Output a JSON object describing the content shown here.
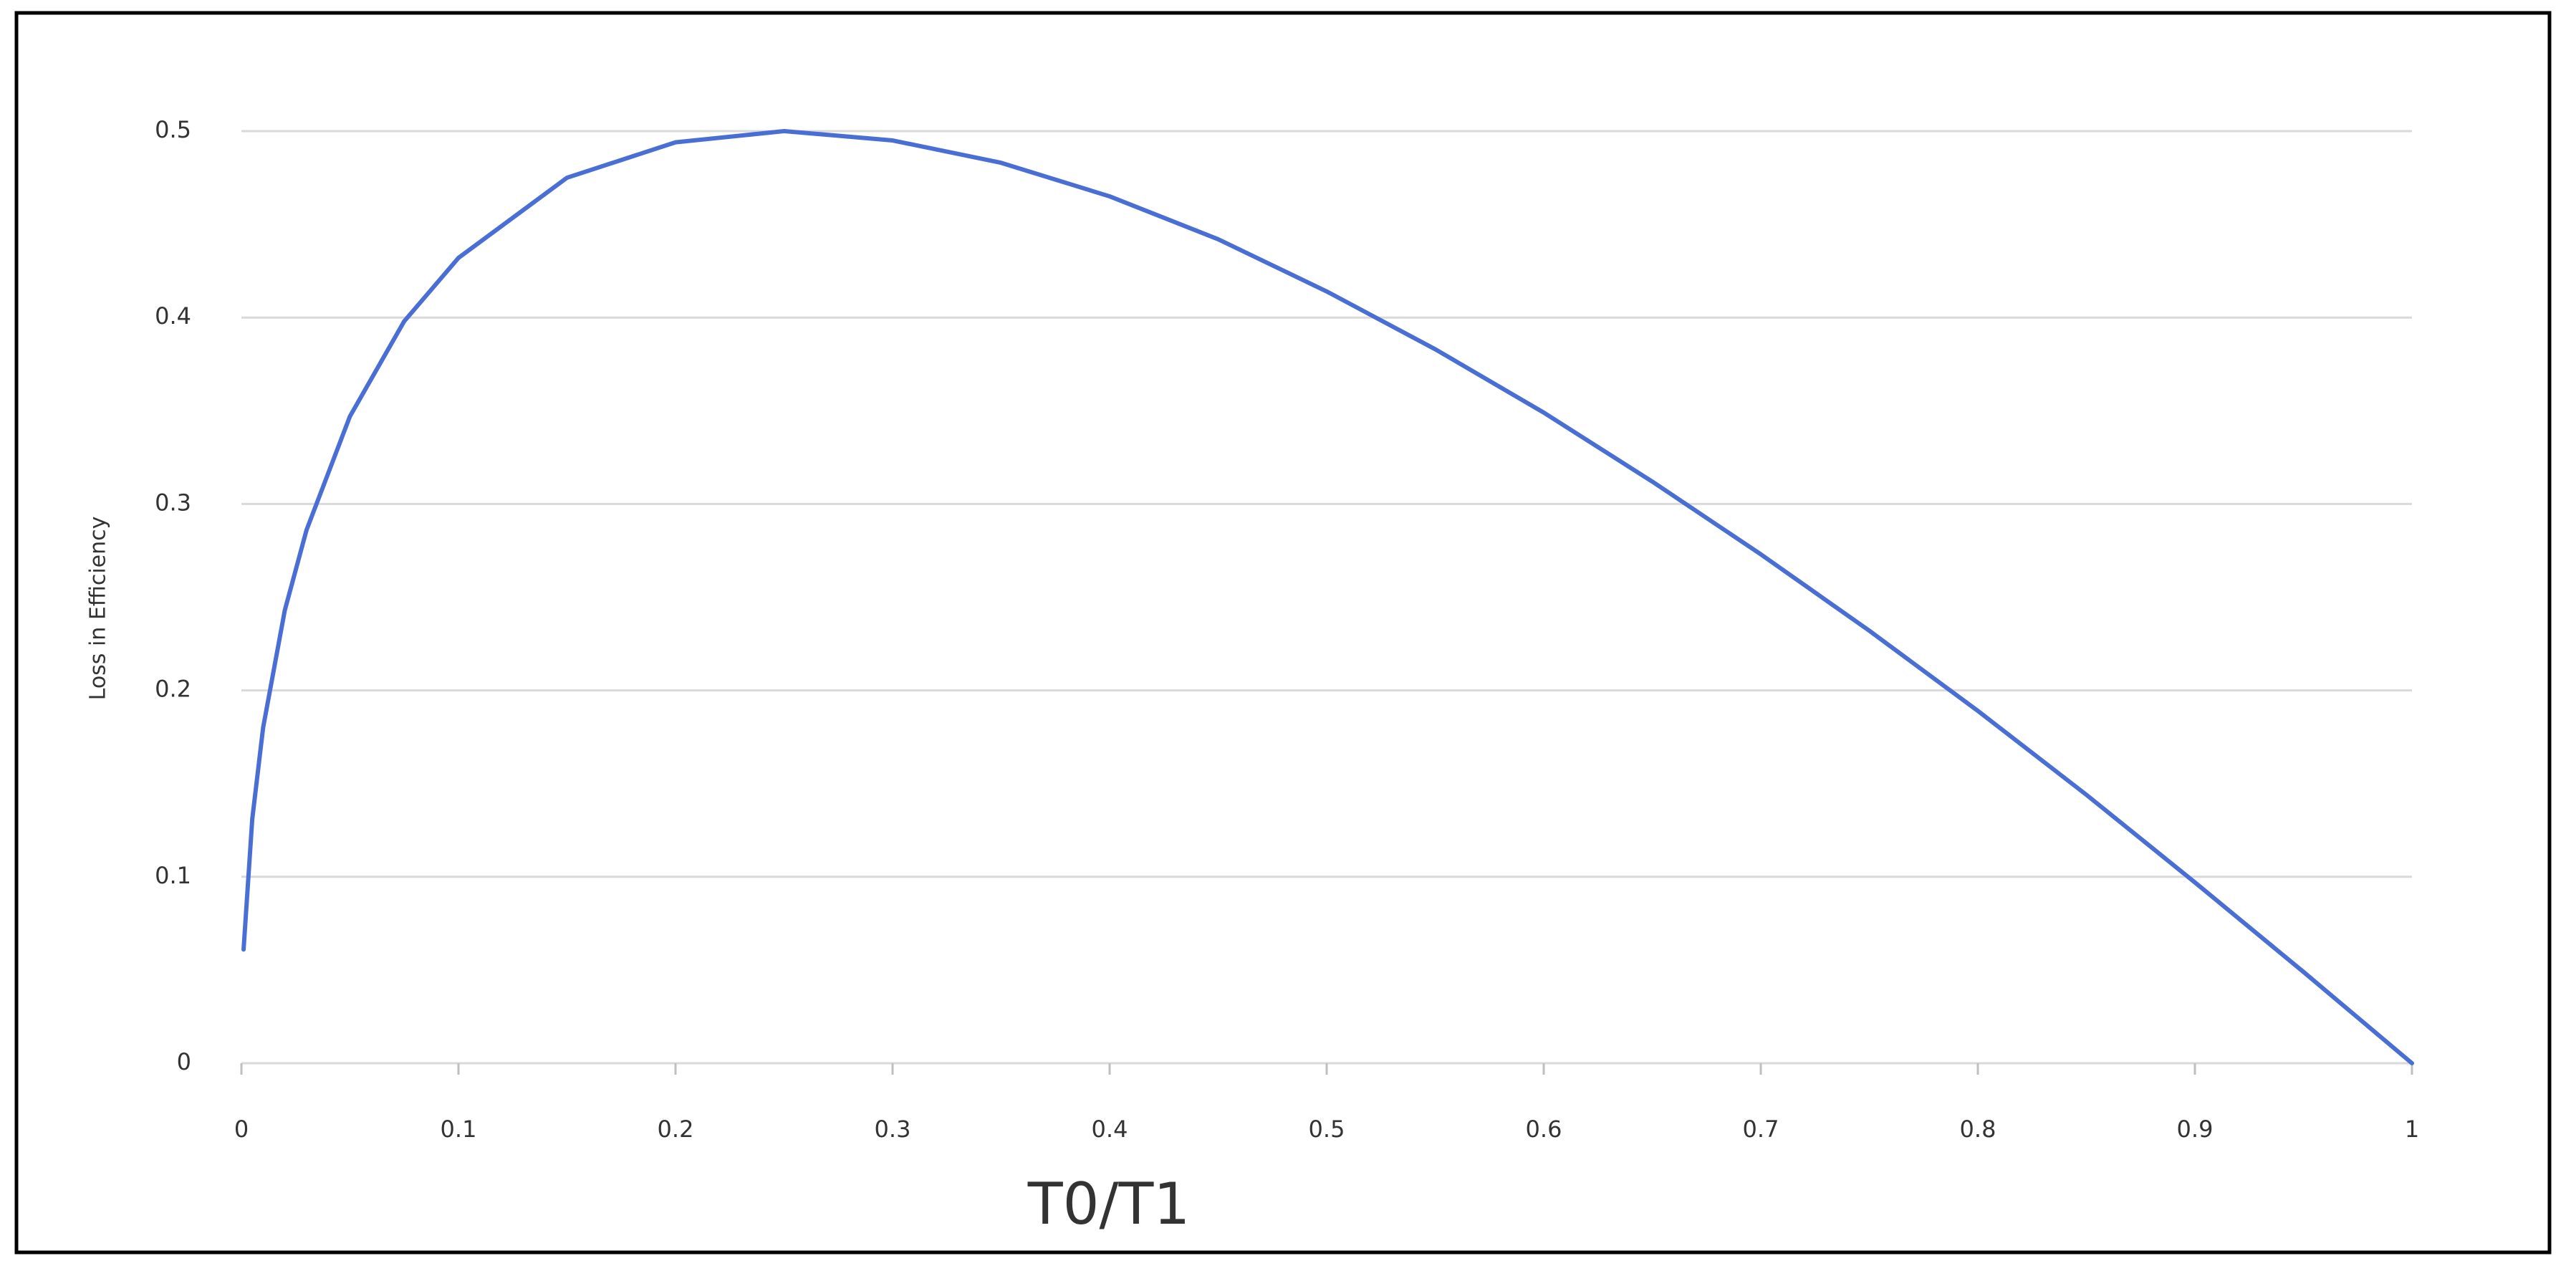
{
  "chart_data": {
    "type": "line",
    "x_label": "T0/T1",
    "y_label": "Loss in Efficiency",
    "x": [
      0.001,
      0.005,
      0.01,
      0.02,
      0.03,
      0.05,
      0.075,
      0.1,
      0.15,
      0.2,
      0.25,
      0.3,
      0.35,
      0.4,
      0.45,
      0.5,
      0.55,
      0.6,
      0.65,
      0.7,
      0.75,
      0.8,
      0.85,
      0.9,
      0.95,
      1
    ],
    "values": [
      0.061,
      0.131,
      0.18,
      0.243,
      0.286,
      0.347,
      0.398,
      0.432,
      0.475,
      0.494,
      0.5,
      0.495,
      0.483,
      0.465,
      0.442,
      0.414,
      0.383,
      0.349,
      0.312,
      0.273,
      0.232,
      0.189,
      0.144,
      0.097,
      0.049,
      0
    ],
    "color": "#4a6fd4",
    "xlim": [
      0,
      1
    ],
    "xticks": [
      0,
      0.1,
      0.2,
      0.3,
      0.4,
      0.5,
      0.6,
      0.7,
      0.8,
      0.9,
      1
    ],
    "ylim": [
      0,
      0.5
    ],
    "yticks": [
      0,
      0.1,
      0.2,
      0.3,
      0.4,
      0.5
    ],
    "grid": true
  }
}
